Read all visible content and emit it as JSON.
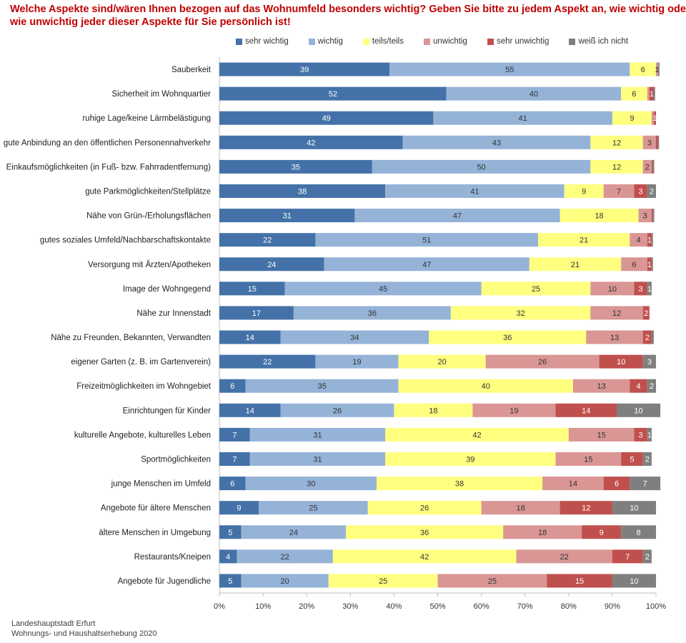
{
  "title": {
    "line1": "Welche Aspekte sind/wären Ihnen bezogen auf das Wohnumfeld besonders wichtig? Geben Sie bitte zu jedem Aspekt an, wie wichtig  oder",
    "line2": "wie unwichtig jeder dieser Aspekte für Sie persönlich ist!"
  },
  "footer": {
    "line1": "Landeshauptstadt Erfurt",
    "line2": "Wohnungs- und Haushaltserhebung 2020"
  },
  "chart_data": {
    "type": "bar",
    "orientation": "horizontal",
    "stacked": true,
    "xlim": [
      0,
      100
    ],
    "x_ticks": [
      "0%",
      "10%",
      "20%",
      "30%",
      "40%",
      "50%",
      "60%",
      "70%",
      "80%",
      "90%",
      "100%"
    ],
    "legend_position": "top",
    "categories": [
      "Sauberkeit",
      "Sicherheit im Wohnquartier",
      "ruhige Lage/keine Lärmbelästigung",
      "gute Anbindung an den öffentlichen Personennahverkehr",
      "Einkaufsmöglichkeiten (in Fuß- bzw. Fahrradentfernung)",
      "gute Parkmöglichkeiten/Stellplätze",
      "Nähe von Grün-/Erholungsflächen",
      "gutes soziales Umfeld/Nachbarschaftskontakte",
      "Versorgung mit Ärzten/Apotheken",
      "Image der Wohngegend",
      "Nähe zur Innenstadt",
      "Nähe zu Freunden, Bekannten, Verwandten",
      "eigener Garten (z. B. im Gartenverein)",
      "Freizeitmöglichkeiten im Wohngebiet",
      "Einrichtungen für Kinder",
      "kulturelle Angebote, kulturelles Leben",
      "Sportmöglichkeiten",
      "junge Menschen im Umfeld",
      "Angebote für ältere Menschen",
      "ältere Menschen in Umgebung",
      "Restaurants/Kneipen",
      "Angebote für Jugendliche"
    ],
    "series": [
      {
        "name": "sehr wichtig",
        "color": "#4472a8",
        "label_color": "#ffffff",
        "values": [
          39,
          52,
          49,
          42,
          35,
          38,
          31,
          22,
          24,
          15,
          17,
          14,
          22,
          6,
          14,
          7,
          7,
          6,
          9,
          5,
          4,
          5
        ]
      },
      {
        "name": "wichtig",
        "color": "#95b3d7",
        "label_color": "#333333",
        "values": [
          55,
          40,
          41,
          43,
          50,
          41,
          47,
          51,
          47,
          45,
          36,
          34,
          19,
          35,
          26,
          31,
          31,
          30,
          25,
          24,
          22,
          20
        ]
      },
      {
        "name": "teils/teils",
        "color": "#ffff80",
        "label_color": "#333333",
        "values": [
          6,
          6,
          9,
          12,
          12,
          9,
          18,
          21,
          21,
          25,
          32,
          36,
          20,
          40,
          18,
          42,
          39,
          38,
          26,
          36,
          42,
          25
        ]
      },
      {
        "name": "unwichtig",
        "color": "#d99694",
        "label_color": "#333333",
        "values": [
          0.5,
          0.5,
          0.5,
          3,
          2,
          7,
          3,
          4,
          6,
          10,
          12,
          13,
          26,
          13,
          19,
          15,
          15,
          14,
          18,
          18,
          22,
          25
        ]
      },
      {
        "name": "sehr unwichtig",
        "color": "#c0504d",
        "label_color": "#ffffff",
        "values": [
          0,
          1,
          0.5,
          0.4,
          0.3,
          3,
          0.3,
          1,
          1,
          3,
          1.5,
          2,
          10,
          4,
          14,
          3,
          5,
          6,
          12,
          9,
          7,
          15
        ]
      },
      {
        "name": "weiß ich nicht",
        "color": "#7f7f7f",
        "label_color": "#ffffff",
        "values": [
          0.3,
          0.3,
          0,
          0.3,
          0.3,
          2,
          0.3,
          0.3,
          0.3,
          1,
          0,
          0.5,
          3,
          2,
          10,
          1,
          2,
          7,
          10,
          8,
          2,
          10
        ]
      }
    ],
    "data_labels": [
      [
        "39",
        "55",
        "6",
        "1",
        "",
        ""
      ],
      [
        "52",
        "40",
        "6",
        "",
        "1",
        ""
      ],
      [
        "49",
        "41",
        "9",
        "",
        "1",
        ""
      ],
      [
        "42",
        "43",
        "12",
        "3",
        "",
        ""
      ],
      [
        "35",
        "50",
        "12",
        "2",
        "",
        ""
      ],
      [
        "38",
        "41",
        "9",
        "7",
        "3",
        "2"
      ],
      [
        "31",
        "47",
        "18",
        "3",
        "",
        ""
      ],
      [
        "22",
        "51",
        "21",
        "4",
        "1",
        ""
      ],
      [
        "24",
        "47",
        "21",
        "6",
        "1",
        ""
      ],
      [
        "15",
        "45",
        "25",
        "10",
        "3",
        "1"
      ],
      [
        "17",
        "36",
        "32",
        "12",
        "2",
        ""
      ],
      [
        "14",
        "34",
        "36",
        "13",
        "2",
        ""
      ],
      [
        "22",
        "19",
        "20",
        "26",
        "10",
        "3"
      ],
      [
        "6",
        "35",
        "40",
        "13",
        "4",
        "2"
      ],
      [
        "14",
        "26",
        "18",
        "19",
        "14",
        "10"
      ],
      [
        "7",
        "31",
        "42",
        "15",
        "3",
        "1"
      ],
      [
        "7",
        "31",
        "39",
        "15",
        "5",
        "2"
      ],
      [
        "6",
        "30",
        "38",
        "14",
        "6",
        "7"
      ],
      [
        "9",
        "25",
        "26",
        "18",
        "12",
        "10"
      ],
      [
        "5",
        "24",
        "36",
        "18",
        "9",
        "8"
      ],
      [
        "4",
        "22",
        "42",
        "22",
        "7",
        "2"
      ],
      [
        "5",
        "20",
        "25",
        "25",
        "15",
        "10"
      ]
    ]
  }
}
